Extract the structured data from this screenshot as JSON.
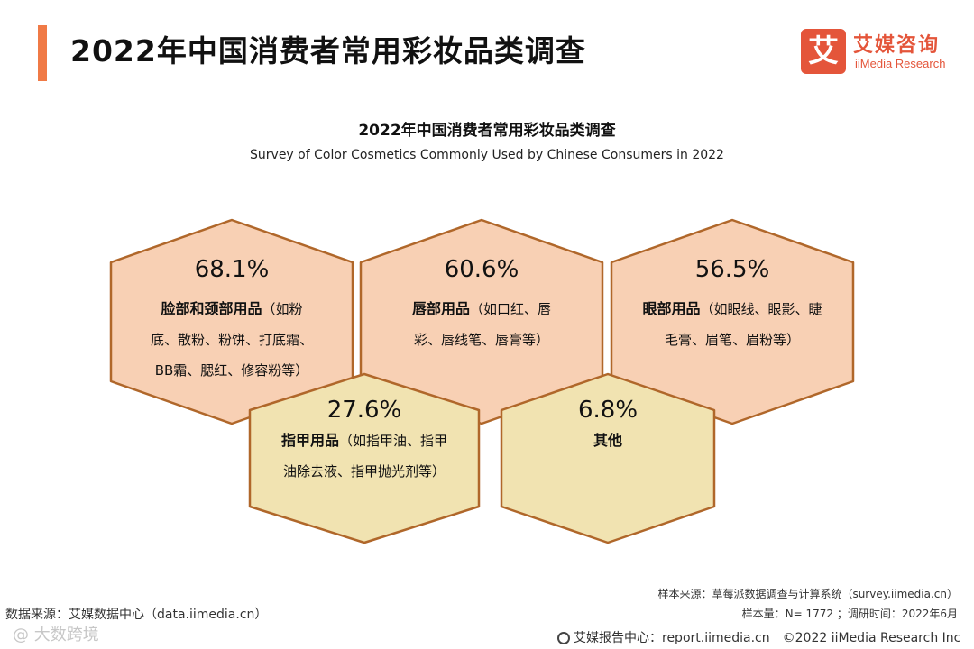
{
  "header": {
    "title": "2022年中国消费者常用彩妆品类调查",
    "logo_mark": "艾",
    "logo_cn": "艾媒咨询",
    "logo_en": "iiMedia Research"
  },
  "colors": {
    "accent": "#f07a46",
    "hex_fill_top": "#f8d0b4",
    "hex_fill_bottom": "#f1e3b1",
    "hex_stroke": "#b0672a"
  },
  "chart_data": {
    "type": "hexagon-infographic",
    "title": "2022年中国消费者常用彩妆品类调查",
    "subtitle": "Survey of Color Cosmetics Commonly Used by Chinese Consumers in 2022",
    "items": [
      {
        "pct": "68.1%",
        "value": 68.1,
        "name": "脸部和颈部用品",
        "detail_lines": [
          "（如粉",
          "底、散粉、粉饼、打底霜、",
          "BB霜、腮红、修容粉等）"
        ]
      },
      {
        "pct": "60.6%",
        "value": 60.6,
        "name": "唇部用品",
        "detail_lines": [
          "（如口红、唇",
          "彩、唇线笔、唇膏等）"
        ]
      },
      {
        "pct": "56.5%",
        "value": 56.5,
        "name": "眼部用品",
        "detail_lines": [
          "（如眼线、眼影、睫",
          "毛膏、眉笔、眉粉等）"
        ]
      },
      {
        "pct": "27.6%",
        "value": 27.6,
        "name": "指甲用品",
        "detail_lines": [
          "（如指甲油、指甲",
          "油除去液、指甲抛光剂等）"
        ]
      },
      {
        "pct": "6.8%",
        "value": 6.8,
        "name": "其他",
        "detail_lines": []
      }
    ]
  },
  "footer": {
    "sample_source": "样本来源：草莓派数据调查与计算系统（survey.iimedia.cn）",
    "data_source": "数据来源：艾媒数据中心（data.iimedia.cn）",
    "sample_size": "样本量：N= 1772 ；调研时间：2022年6月",
    "report_center": "艾媒报告中心：report.iimedia.cn",
    "copyright": "©2022  iiMedia Research  Inc",
    "watermark": "@ 大数跨境"
  }
}
